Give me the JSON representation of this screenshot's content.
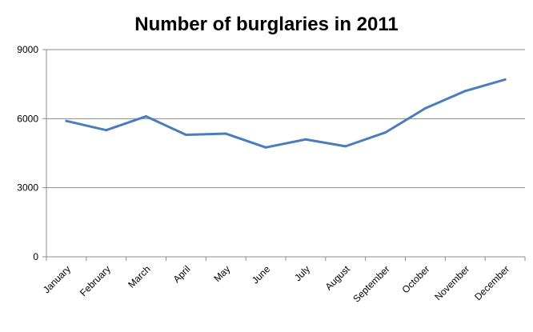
{
  "chart_data": {
    "type": "line",
    "title": "Number of burglaries in 2011",
    "xlabel": "",
    "ylabel": "",
    "categories": [
      "January",
      "February",
      "March",
      "April",
      "May",
      "June",
      "July",
      "August",
      "September",
      "October",
      "November",
      "December"
    ],
    "series": [
      {
        "values": [
          5900,
          5500,
          6100,
          5300,
          5350,
          4750,
          5100,
          4800,
          5400,
          6450,
          7200,
          7700
        ],
        "color": "#4a7ebb"
      }
    ],
    "ylim": [
      0,
      9000
    ],
    "yticks": [
      0,
      3000,
      6000,
      9000
    ],
    "grid": "horizontal",
    "legend": "none"
  }
}
